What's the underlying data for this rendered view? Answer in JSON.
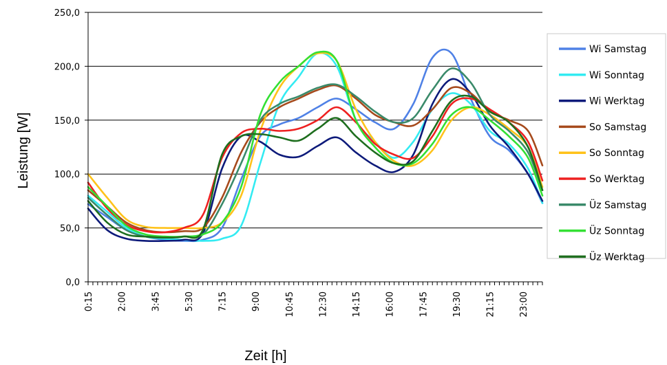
{
  "chart_data": {
    "type": "line",
    "title": "",
    "xlabel": "Zeit [h]",
    "ylabel": "Leistung [W]",
    "ylim": [
      0,
      250
    ],
    "y_ticks": [
      "0,0",
      "50,0",
      "100,0",
      "150,0",
      "200,0",
      "250,0"
    ],
    "x_tick_labels": [
      "0:15",
      "2:00",
      "3:45",
      "5:30",
      "7:15",
      "9:00",
      "10:45",
      "12:30",
      "14:15",
      "16:00",
      "17:45",
      "19:30",
      "21:15",
      "23:00"
    ],
    "x": [
      "0:15",
      "1:15",
      "2:15",
      "3:15",
      "4:15",
      "5:15",
      "6:15",
      "7:15",
      "8:15",
      "9:15",
      "10:15",
      "11:15",
      "12:15",
      "13:15",
      "14:15",
      "15:15",
      "16:15",
      "17:15",
      "18:15",
      "19:15",
      "20:15",
      "21:15",
      "22:15",
      "23:15",
      "24:00"
    ],
    "grid": "horizontal",
    "legend_position": "right",
    "series": [
      {
        "name": "Wi Samstag",
        "color": "#4f81e6",
        "values": [
          72,
          60,
          48,
          42,
          39,
          38,
          39,
          50,
          95,
          135,
          146,
          152,
          162,
          170,
          160,
          148,
          142,
          165,
          208,
          212,
          170,
          135,
          122,
          100,
          73
        ]
      },
      {
        "name": "Wi Sonntag",
        "color": "#33ebf2",
        "values": [
          80,
          65,
          50,
          42,
          40,
          39,
          38,
          40,
          52,
          110,
          165,
          190,
          212,
          200,
          150,
          130,
          115,
          130,
          160,
          175,
          165,
          140,
          128,
          105,
          73
        ]
      },
      {
        "name": "Wi Werktag",
        "color": "#0d1a7a",
        "values": [
          68,
          48,
          40,
          38,
          38,
          39,
          45,
          105,
          135,
          130,
          118,
          116,
          126,
          134,
          120,
          108,
          102,
          118,
          165,
          188,
          175,
          145,
          125,
          100,
          75
        ]
      },
      {
        "name": "So Samstag",
        "color": "#a64a1c",
        "values": [
          85,
          70,
          55,
          48,
          46,
          47,
          50,
          78,
          120,
          148,
          162,
          170,
          178,
          182,
          170,
          155,
          148,
          145,
          160,
          180,
          175,
          158,
          150,
          140,
          108
        ]
      },
      {
        "name": "So Sonntag",
        "color": "#ffc21a",
        "values": [
          100,
          78,
          58,
          51,
          50,
          50,
          50,
          55,
          80,
          140,
          180,
          200,
          212,
          205,
          160,
          130,
          112,
          108,
          122,
          150,
          162,
          155,
          142,
          125,
          88
        ]
      },
      {
        "name": "So Werktag",
        "color": "#ee2020",
        "values": [
          92,
          68,
          53,
          47,
          46,
          50,
          62,
          115,
          138,
          142,
          140,
          142,
          150,
          162,
          148,
          128,
          118,
          115,
          135,
          165,
          170,
          160,
          148,
          130,
          94
        ]
      },
      {
        "name": "Üz Samstag",
        "color": "#3a8a6a",
        "values": [
          78,
          62,
          48,
          42,
          41,
          42,
          44,
          72,
          110,
          150,
          165,
          172,
          180,
          183,
          172,
          158,
          148,
          152,
          178,
          198,
          185,
          155,
          140,
          120,
          85
        ]
      },
      {
        "name": "Üz Sonntag",
        "color": "#33e033",
        "values": [
          88,
          70,
          52,
          44,
          42,
          42,
          44,
          55,
          88,
          155,
          185,
          200,
          213,
          205,
          150,
          125,
          110,
          110,
          128,
          155,
          162,
          150,
          135,
          115,
          80
        ]
      },
      {
        "name": "Üz Werktag",
        "color": "#1e6e1e",
        "values": [
          75,
          55,
          44,
          42,
          41,
          42,
          48,
          118,
          135,
          137,
          134,
          131,
          142,
          152,
          135,
          120,
          110,
          112,
          140,
          168,
          172,
          158,
          148,
          125,
          85
        ]
      }
    ]
  }
}
